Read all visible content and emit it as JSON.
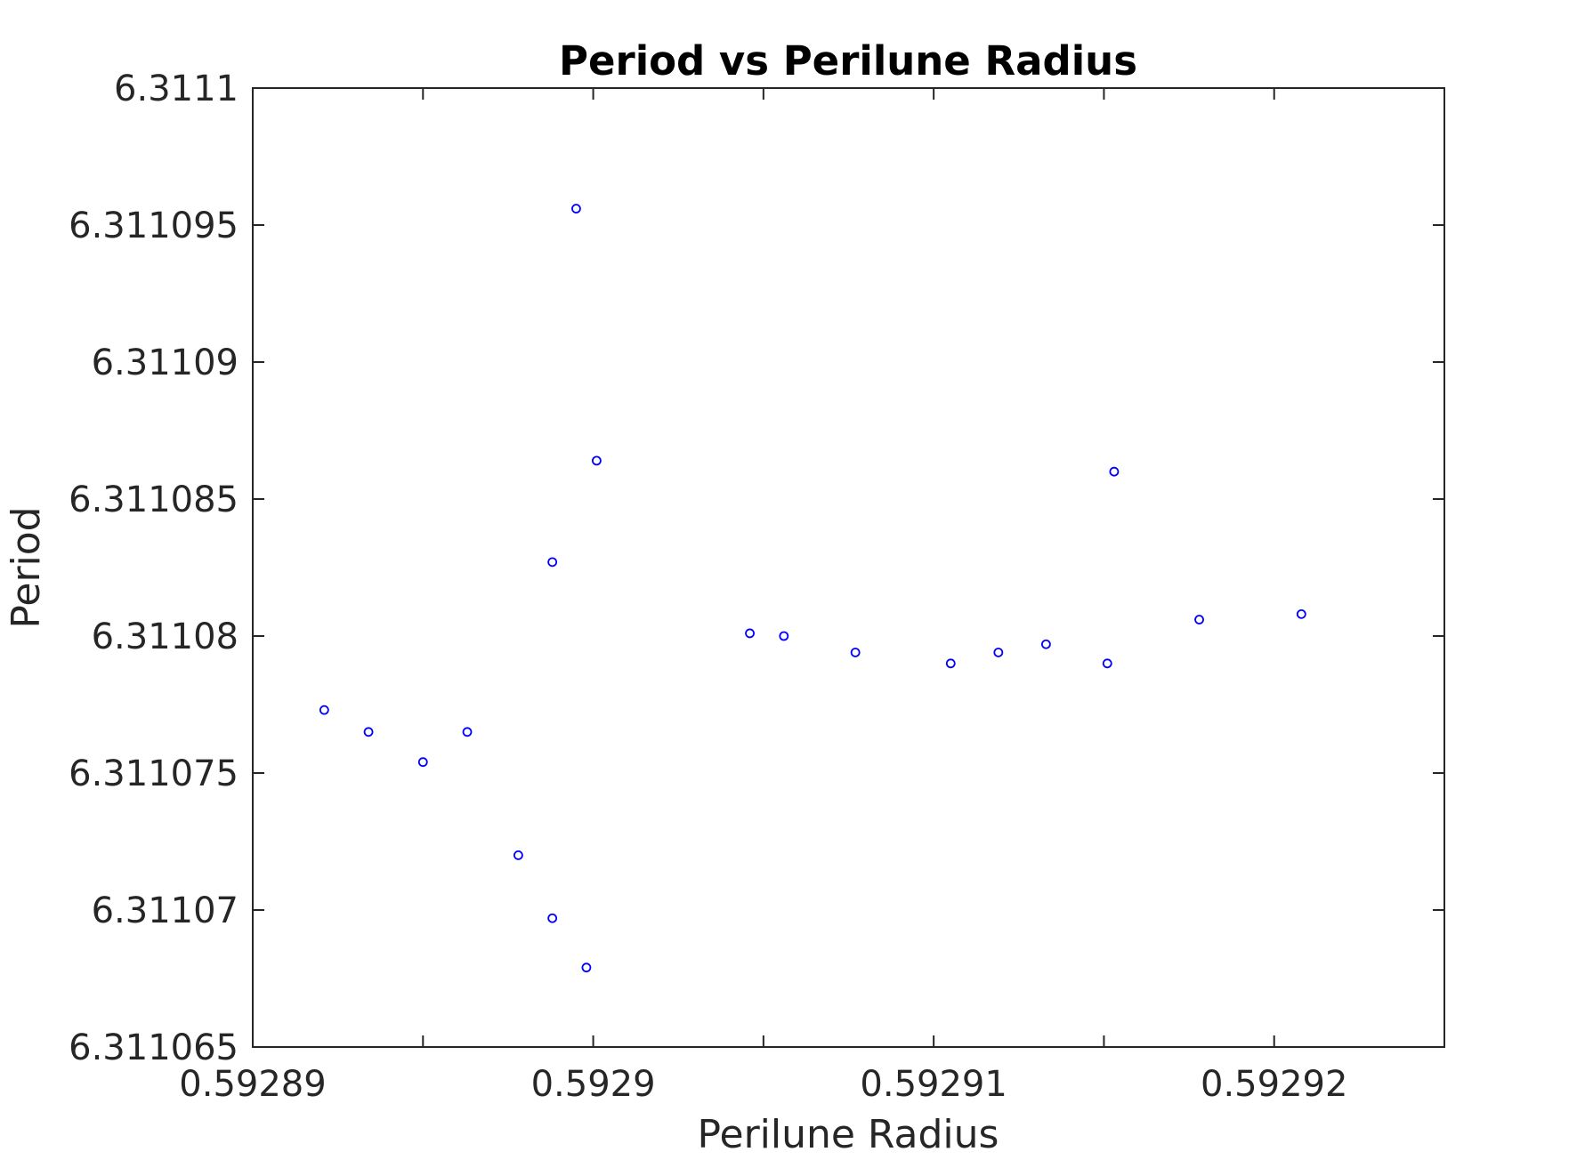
{
  "chart_data": {
    "type": "scatter",
    "title": "Period vs Perilune Radius",
    "xlabel": "Perilune Radius",
    "ylabel": "Period",
    "xlim": [
      0.59289,
      0.592925
    ],
    "ylim": [
      6.311065,
      6.3111
    ],
    "xticks": [
      {
        "value": 0.59289,
        "label": "0.59289"
      },
      {
        "value": 0.592895,
        "label": ""
      },
      {
        "value": 0.5929,
        "label": "0.5929"
      },
      {
        "value": 0.592905,
        "label": ""
      },
      {
        "value": 0.59291,
        "label": "0.59291"
      },
      {
        "value": 0.592915,
        "label": ""
      },
      {
        "value": 0.59292,
        "label": "0.59292"
      }
    ],
    "yticks": [
      {
        "value": 6.311065,
        "label": "6.311065"
      },
      {
        "value": 6.31107,
        "label": "6.31107"
      },
      {
        "value": 6.311075,
        "label": "6.311075"
      },
      {
        "value": 6.31108,
        "label": "6.31108"
      },
      {
        "value": 6.311085,
        "label": "6.311085"
      },
      {
        "value": 6.31109,
        "label": "6.31109"
      },
      {
        "value": 6.311095,
        "label": "6.311095"
      },
      {
        "value": 6.3111,
        "label": "6.3111"
      }
    ],
    "grid": false,
    "marker": "open-circle",
    "marker_color": "#0000ff",
    "axis_color": "#262626",
    "series": [
      {
        "points": [
          {
            "x": 0.5928921,
            "y": 6.3110773
          },
          {
            "x": 0.5928934,
            "y": 6.3110765
          },
          {
            "x": 0.592895,
            "y": 6.3110754
          },
          {
            "x": 0.5928963,
            "y": 6.3110765
          },
          {
            "x": 0.5928978,
            "y": 6.311072
          },
          {
            "x": 0.5928988,
            "y": 6.3110697
          },
          {
            "x": 0.5928988,
            "y": 6.3110827
          },
          {
            "x": 0.5928995,
            "y": 6.3110956
          },
          {
            "x": 0.5928998,
            "y": 6.3110679
          },
          {
            "x": 0.5929001,
            "y": 6.3110864
          },
          {
            "x": 0.5929046,
            "y": 6.3110801
          },
          {
            "x": 0.5929056,
            "y": 6.31108
          },
          {
            "x": 0.5929077,
            "y": 6.3110794
          },
          {
            "x": 0.5929105,
            "y": 6.311079
          },
          {
            "x": 0.5929119,
            "y": 6.3110794
          },
          {
            "x": 0.5929133,
            "y": 6.3110797
          },
          {
            "x": 0.5929151,
            "y": 6.311079
          },
          {
            "x": 0.5929153,
            "y": 6.311086
          },
          {
            "x": 0.5929178,
            "y": 6.3110806
          },
          {
            "x": 0.5929208,
            "y": 6.3110808
          }
        ]
      }
    ]
  }
}
